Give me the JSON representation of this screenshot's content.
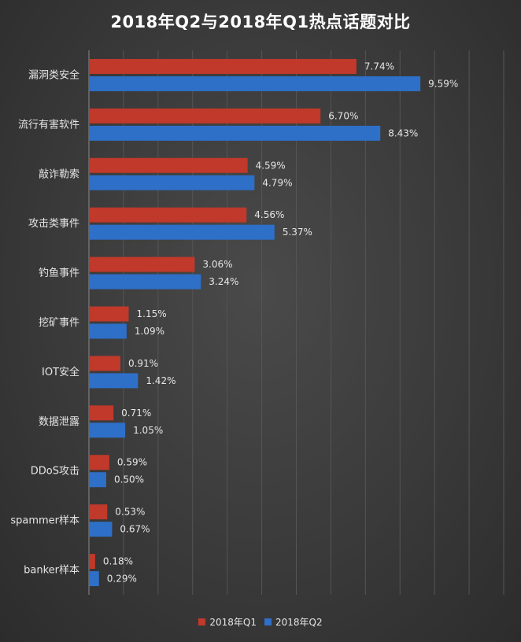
{
  "chart_data": {
    "type": "bar",
    "orientation": "horizontal",
    "title": "2018年Q2与2018年Q1热点话题对比",
    "categories": [
      "漏洞类安全",
      "流行有害软件",
      "敲诈勒索",
      "攻击类事件",
      "钓鱼事件",
      "挖矿事件",
      "IOT安全",
      "数据泄露",
      "DDoS攻击",
      "spammer样本",
      "banker样本"
    ],
    "series": [
      {
        "name": "2018年Q1",
        "color": "#c0392b",
        "values": [
          7.74,
          6.7,
          4.59,
          4.56,
          3.06,
          1.15,
          0.91,
          0.71,
          0.59,
          0.53,
          0.18
        ],
        "labels": [
          "7.74%",
          "6.70%",
          "4.59%",
          "4.56%",
          "3.06%",
          "1.15%",
          "0.91%",
          "0.71%",
          "0.59%",
          "0.53%",
          "0.18%"
        ]
      },
      {
        "name": "2018年Q2",
        "color": "#2e6fc8",
        "values": [
          9.59,
          8.43,
          4.79,
          5.37,
          3.24,
          1.09,
          1.42,
          1.05,
          0.5,
          0.67,
          0.29
        ],
        "labels": [
          "9.59%",
          "8.43%",
          "4.79%",
          "5.37%",
          "3.24%",
          "1.09%",
          "1.42%",
          "1.05%",
          "0.50%",
          "0.67%",
          "0.29%"
        ]
      }
    ],
    "xlim": [
      0,
      12
    ],
    "grid": true,
    "legend_position": "bottom"
  }
}
